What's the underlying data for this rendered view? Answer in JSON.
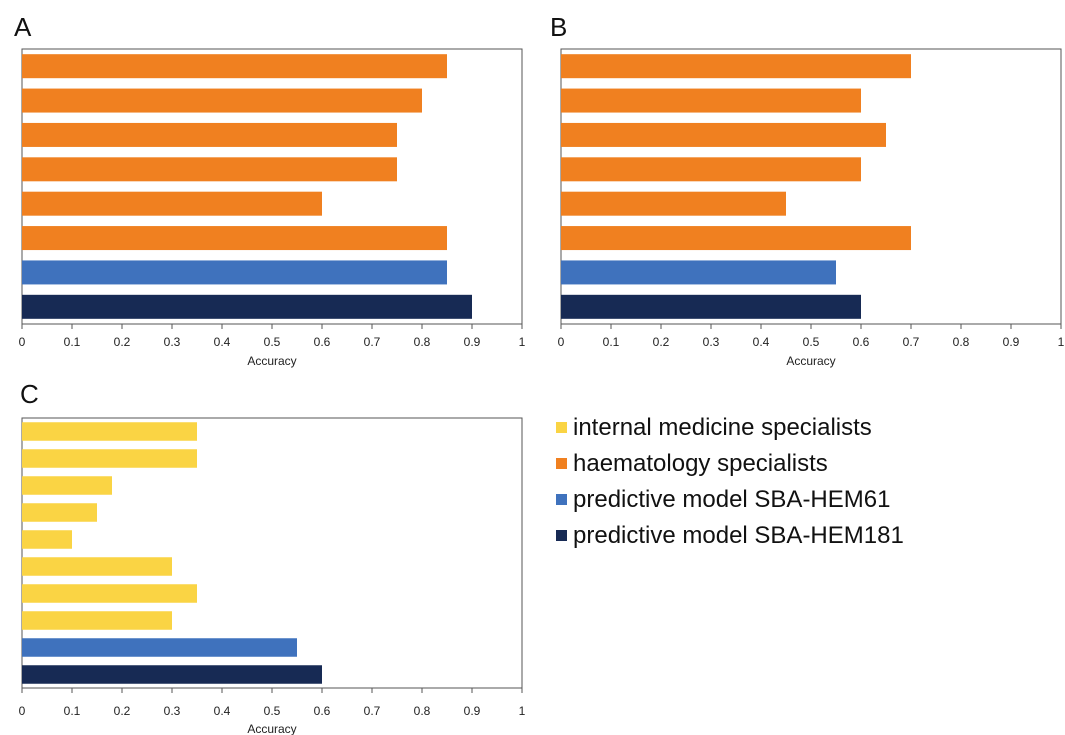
{
  "colors": {
    "internal_medicine": "#FAD444",
    "haematology": "#F08020",
    "model_61": "#3F72BD",
    "model_181": "#172A54"
  },
  "legend": [
    {
      "label": "internal medicine specialists",
      "color_key": "internal_medicine"
    },
    {
      "label": "haematology specialists",
      "color_key": "haematology"
    },
    {
      "label": "predictive model SBA-HEM61",
      "color_key": "model_61"
    },
    {
      "label": "predictive model SBA-HEM181",
      "color_key": "model_181"
    }
  ],
  "chart_data": [
    {
      "panel": "A",
      "type": "bar",
      "orientation": "horizontal",
      "xlabel": "Accuracy",
      "xlim": [
        0,
        1
      ],
      "xticks": [
        "0",
        "0.1",
        "0.2",
        "0.3",
        "0.4",
        "0.5",
        "0.6",
        "0.7",
        "0.8",
        "0.9",
        "1"
      ],
      "bars": [
        {
          "value": 0.85,
          "group": "haematology"
        },
        {
          "value": 0.8,
          "group": "haematology"
        },
        {
          "value": 0.75,
          "group": "haematology"
        },
        {
          "value": 0.75,
          "group": "haematology"
        },
        {
          "value": 0.6,
          "group": "haematology"
        },
        {
          "value": 0.85,
          "group": "haematology"
        },
        {
          "value": 0.85,
          "group": "model_61"
        },
        {
          "value": 0.9,
          "group": "model_181"
        }
      ]
    },
    {
      "panel": "B",
      "type": "bar",
      "orientation": "horizontal",
      "xlabel": "Accuracy",
      "xlim": [
        0,
        1
      ],
      "xticks": [
        "0",
        "0.1",
        "0.2",
        "0.3",
        "0.4",
        "0.5",
        "0.6",
        "0.7",
        "0.8",
        "0.9",
        "1"
      ],
      "bars": [
        {
          "value": 0.7,
          "group": "haematology"
        },
        {
          "value": 0.6,
          "group": "haematology"
        },
        {
          "value": 0.65,
          "group": "haematology"
        },
        {
          "value": 0.6,
          "group": "haematology"
        },
        {
          "value": 0.45,
          "group": "haematology"
        },
        {
          "value": 0.7,
          "group": "haematology"
        },
        {
          "value": 0.55,
          "group": "model_61"
        },
        {
          "value": 0.6,
          "group": "model_181"
        }
      ]
    },
    {
      "panel": "C",
      "type": "bar",
      "orientation": "horizontal",
      "xlabel": "Accuracy",
      "xlim": [
        0,
        1
      ],
      "xticks": [
        "0",
        "0.1",
        "0.2",
        "0.3",
        "0.4",
        "0.5",
        "0.6",
        "0.7",
        "0.8",
        "0.9",
        "1"
      ],
      "bars": [
        {
          "value": 0.35,
          "group": "internal_medicine"
        },
        {
          "value": 0.35,
          "group": "internal_medicine"
        },
        {
          "value": 0.18,
          "group": "internal_medicine"
        },
        {
          "value": 0.15,
          "group": "internal_medicine"
        },
        {
          "value": 0.1,
          "group": "internal_medicine"
        },
        {
          "value": 0.3,
          "group": "internal_medicine"
        },
        {
          "value": 0.35,
          "group": "internal_medicine"
        },
        {
          "value": 0.3,
          "group": "internal_medicine"
        },
        {
          "value": 0.55,
          "group": "model_61"
        },
        {
          "value": 0.6,
          "group": "model_181"
        }
      ]
    }
  ]
}
